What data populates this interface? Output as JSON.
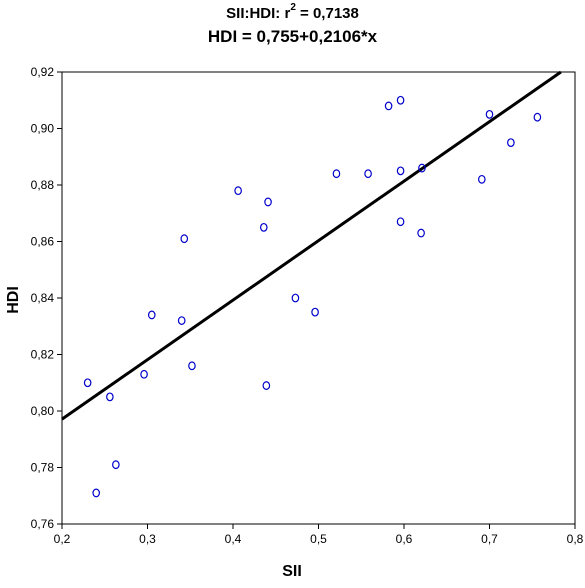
{
  "chart_data": {
    "type": "scatter",
    "title_prefix": "SII:HDI:  r",
    "title_sup": "2",
    "title_suffix": " = 0,7138",
    "subtitle": "HDI = 0,755+0,2106*x",
    "xlabel": "SII",
    "ylabel": "HDI",
    "xlim": [
      0.2,
      0.8
    ],
    "ylim": [
      0.76,
      0.92
    ],
    "x_ticks": [
      "0,2",
      "0,3",
      "0,4",
      "0,5",
      "0,6",
      "0,7",
      "0,8"
    ],
    "y_ticks": [
      "0,76",
      "0,78",
      "0,80",
      "0,82",
      "0,84",
      "0,86",
      "0,88",
      "0,90",
      "0,92"
    ],
    "grid": false,
    "regression": {
      "intercept": 0.755,
      "slope": 0.2106
    },
    "marker_color": "#0000cc",
    "line_color": "#000000",
    "points": [
      {
        "x": 0.23,
        "y": 0.81
      },
      {
        "x": 0.24,
        "y": 0.771
      },
      {
        "x": 0.256,
        "y": 0.805
      },
      {
        "x": 0.263,
        "y": 0.781
      },
      {
        "x": 0.296,
        "y": 0.813
      },
      {
        "x": 0.305,
        "y": 0.834
      },
      {
        "x": 0.34,
        "y": 0.832
      },
      {
        "x": 0.343,
        "y": 0.861
      },
      {
        "x": 0.352,
        "y": 0.816
      },
      {
        "x": 0.406,
        "y": 0.878
      },
      {
        "x": 0.436,
        "y": 0.865
      },
      {
        "x": 0.439,
        "y": 0.809
      },
      {
        "x": 0.441,
        "y": 0.874
      },
      {
        "x": 0.473,
        "y": 0.84
      },
      {
        "x": 0.496,
        "y": 0.835
      },
      {
        "x": 0.521,
        "y": 0.884
      },
      {
        "x": 0.558,
        "y": 0.884
      },
      {
        "x": 0.582,
        "y": 0.908
      },
      {
        "x": 0.596,
        "y": 0.91
      },
      {
        "x": 0.596,
        "y": 0.885
      },
      {
        "x": 0.596,
        "y": 0.867
      },
      {
        "x": 0.62,
        "y": 0.863
      },
      {
        "x": 0.621,
        "y": 0.886
      },
      {
        "x": 0.691,
        "y": 0.882
      },
      {
        "x": 0.7,
        "y": 0.905
      },
      {
        "x": 0.725,
        "y": 0.895
      },
      {
        "x": 0.756,
        "y": 0.904
      }
    ]
  }
}
